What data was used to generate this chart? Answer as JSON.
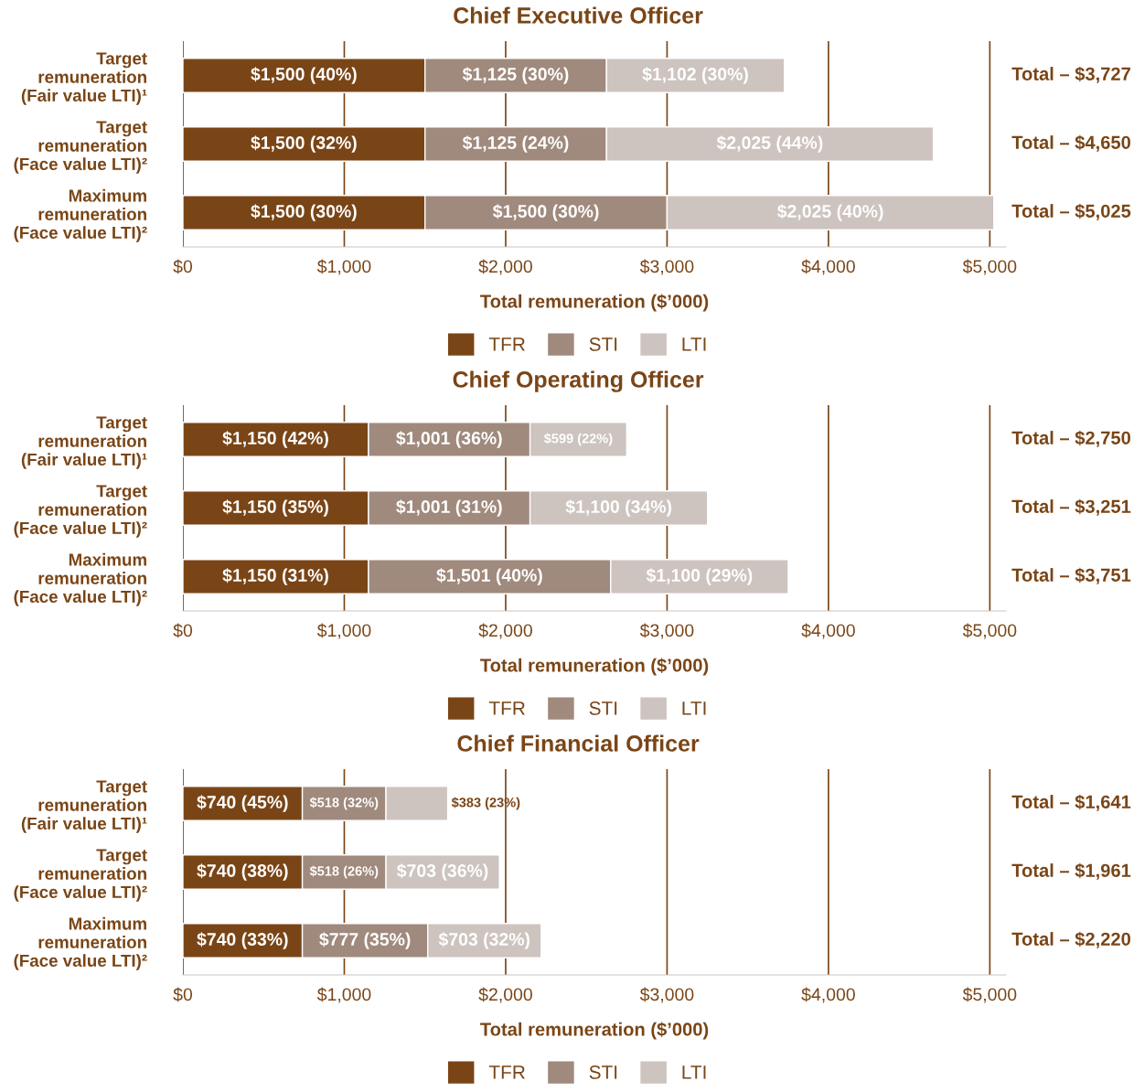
{
  "chart_data": [
    {
      "type": "bar",
      "orientation": "horizontal",
      "stacked": true,
      "title": "Chief Executive Officer",
      "xlabel": "Total remuneration ($’000)",
      "categories": [
        "Target\nremuneration\n(Fair value LTI)¹",
        "Target\nremuneration\n(Face value LTI)²",
        "Maximum\nremuneration\n(Face value LTI)²"
      ],
      "series": [
        {
          "name": "TFR",
          "color": "#7a4516",
          "values": [
            1500,
            1500,
            1500
          ],
          "value_labels": [
            "$1,500 (40%)",
            "$1,500 (32%)",
            "$1,500 (30%)"
          ]
        },
        {
          "name": "STI",
          "color": "#a08a7d",
          "values": [
            1125,
            1125,
            1500
          ],
          "value_labels": [
            "$1,125 (30%)",
            "$1,125 (24%)",
            "$1,500 (30%)"
          ]
        },
        {
          "name": "LTI",
          "color": "#cdc3bf",
          "values": [
            1102,
            2025,
            2025
          ],
          "value_labels": [
            "$1,102 (30%)",
            "$2,025 (44%)",
            "$2,025 (40%)"
          ]
        }
      ],
      "annotations": [
        "Total – $3,727",
        "Total – $4,650",
        "Total – $5,025"
      ],
      "xlim": [
        0,
        5100
      ],
      "xticks": [
        {
          "value": 0,
          "label": "$0"
        },
        {
          "value": 1000,
          "label": "$1,000"
        },
        {
          "value": 2000,
          "label": "$2,000"
        },
        {
          "value": 3000,
          "label": "$3,000"
        },
        {
          "value": 4000,
          "label": "$4,000"
        },
        {
          "value": 5000,
          "label": "$5,000"
        }
      ],
      "grid": "x",
      "legend": "bottom"
    },
    {
      "type": "bar",
      "orientation": "horizontal",
      "stacked": true,
      "title": "Chief Operating Officer",
      "xlabel": "Total remuneration ($’000)",
      "categories": [
        "Target\nremuneration\n(Fair value LTI)¹",
        "Target\nremuneration\n(Face value LTI)²",
        "Maximum\nremuneration\n(Face value LTI)²"
      ],
      "series": [
        {
          "name": "TFR",
          "color": "#7a4516",
          "values": [
            1150,
            1150,
            1150
          ],
          "value_labels": [
            "$1,150 (42%)",
            "$1,150 (35%)",
            "$1,150 (31%)"
          ]
        },
        {
          "name": "STI",
          "color": "#a08a7d",
          "values": [
            1001,
            1001,
            1501
          ],
          "value_labels": [
            "$1,001 (36%)",
            "$1,001 (31%)",
            "$1,501 (40%)"
          ]
        },
        {
          "name": "LTI",
          "color": "#cdc3bf",
          "values": [
            599,
            1100,
            1100
          ],
          "value_labels": [
            "$599 (22%)",
            "$1,100 (34%)",
            "$1,100 (29%)"
          ]
        }
      ],
      "annotations": [
        "Total – $2,750",
        "Total – $3,251",
        "Total – $3,751"
      ],
      "xlim": [
        0,
        5100
      ],
      "xticks": [
        {
          "value": 0,
          "label": "$0"
        },
        {
          "value": 1000,
          "label": "$1,000"
        },
        {
          "value": 2000,
          "label": "$2,000"
        },
        {
          "value": 3000,
          "label": "$3,000"
        },
        {
          "value": 4000,
          "label": "$4,000"
        },
        {
          "value": 5000,
          "label": "$5,000"
        }
      ],
      "grid": "x",
      "legend": "bottom"
    },
    {
      "type": "bar",
      "orientation": "horizontal",
      "stacked": true,
      "title": "Chief Financial Officer",
      "xlabel": "Total remuneration ($’000)",
      "categories": [
        "Target\nremuneration\n(Fair value LTI)¹",
        "Target\nremuneration\n(Face value LTI)²",
        "Maximum\nremuneration\n(Face value LTI)²"
      ],
      "series": [
        {
          "name": "TFR",
          "color": "#7a4516",
          "values": [
            740,
            740,
            740
          ],
          "value_labels": [
            "$740 (45%)",
            "$740 (38%)",
            "$740 (33%)"
          ]
        },
        {
          "name": "STI",
          "color": "#a08a7d",
          "values": [
            518,
            518,
            777
          ],
          "value_labels": [
            "$518 (32%)",
            "$518 (26%)",
            "$777 (35%)"
          ]
        },
        {
          "name": "LTI",
          "color": "#cdc3bf",
          "values": [
            383,
            703,
            703
          ],
          "value_labels": [
            "$383 (23%)",
            "$703 (36%)",
            "$703 (32%)"
          ]
        }
      ],
      "annotations": [
        "Total – $1,641",
        "Total – $1,961",
        "Total – $2,220"
      ],
      "xlim": [
        0,
        5100
      ],
      "xticks": [
        {
          "value": 0,
          "label": "$0"
        },
        {
          "value": 1000,
          "label": "$1,000"
        },
        {
          "value": 2000,
          "label": "$2,000"
        },
        {
          "value": 3000,
          "label": "$3,000"
        },
        {
          "value": 4000,
          "label": "$4,000"
        },
        {
          "value": 5000,
          "label": "$5,000"
        }
      ],
      "grid": "x",
      "legend": "bottom"
    }
  ]
}
